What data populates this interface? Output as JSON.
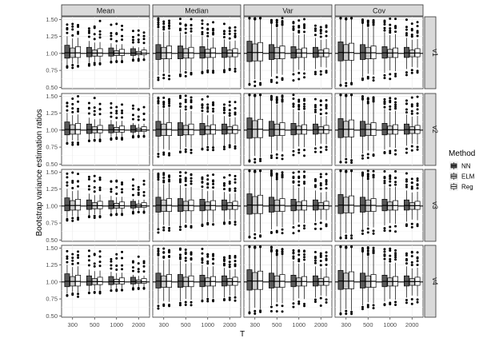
{
  "chart_data": {
    "type": "box",
    "panel_columns": [
      "Mean",
      "Median",
      "Var",
      "Cov"
    ],
    "panel_rows": [
      "v1",
      "v2",
      "v3",
      "v4"
    ],
    "categories": [
      "300",
      "500",
      "1000",
      "2000"
    ],
    "xlabel": "T",
    "ylabel": "Bootstrap variance estimation ratios",
    "ylim": [
      0.48,
      1.54
    ],
    "yticks": [
      0.5,
      0.75,
      1.0,
      1.25,
      1.5
    ],
    "ytick_labels": [
      "0.50",
      "0.75",
      "1.00",
      "1.25",
      "1.50"
    ],
    "reference_line": 1.0,
    "legend": {
      "title": "Method",
      "position": "right",
      "entries": [
        {
          "name": "NN",
          "color": "#595959"
        },
        {
          "name": "ELM",
          "color": "#c8c8c8"
        },
        {
          "name": "Reg",
          "color": "#ffffff"
        }
      ]
    },
    "grid": true,
    "series": [
      {
        "name": "NN",
        "color": "#595959"
      },
      {
        "name": "ELM",
        "color": "#c8c8c8"
      },
      {
        "name": "Reg",
        "color": "#ffffff"
      }
    ],
    "box_style": {
      "Mean": {
        "q1": [
          0.95,
          0.97,
          0.98,
          0.99
        ],
        "q3": [
          1.08,
          1.05,
          1.04,
          1.03
        ],
        "w_lo": [
          0.85,
          0.88,
          0.9,
          0.93
        ],
        "w_hi": [
          1.22,
          1.16,
          1.13,
          1.09
        ],
        "out_lo": [
          0.78,
          0.82,
          0.86,
          0.89
        ],
        "out_hi": [
          1.5,
          1.48,
          1.45,
          1.4
        ]
      },
      "Median": {
        "q1": [
          0.93,
          0.94,
          0.95,
          0.96
        ],
        "q3": [
          1.09,
          1.07,
          1.06,
          1.05
        ],
        "w_lo": [
          0.72,
          0.75,
          0.77,
          0.8
        ],
        "w_hi": [
          1.32,
          1.27,
          1.22,
          1.18
        ],
        "out_lo": [
          0.6,
          0.65,
          0.7,
          0.72
        ],
        "out_hi": [
          1.52,
          1.52,
          1.5,
          1.46
        ]
      },
      "Var": {
        "q1": [
          0.9,
          0.93,
          0.95,
          0.96
        ],
        "q3": [
          1.14,
          1.09,
          1.06,
          1.05
        ],
        "w_lo": [
          0.62,
          0.7,
          0.76,
          0.8
        ],
        "w_hi": [
          1.5,
          1.38,
          1.27,
          1.2
        ],
        "out_lo": [
          0.52,
          0.56,
          0.6,
          0.65
        ],
        "out_hi": [
          1.52,
          1.52,
          1.52,
          1.5
        ]
      },
      "Cov": {
        "q1": [
          0.91,
          0.93,
          0.95,
          0.96
        ],
        "q3": [
          1.13,
          1.09,
          1.06,
          1.05
        ],
        "w_lo": [
          0.6,
          0.7,
          0.75,
          0.8
        ],
        "w_hi": [
          1.5,
          1.38,
          1.27,
          1.2
        ],
        "out_lo": [
          0.52,
          0.58,
          0.62,
          0.66
        ],
        "out_hi": [
          1.52,
          1.52,
          1.52,
          1.5
        ]
      }
    },
    "method_offsets": {
      "NN": {
        "q1": -0.02,
        "q3": 0.04,
        "w": 1.15
      },
      "ELM": {
        "q1": -0.01,
        "q3": 0.0,
        "w": 1.0
      },
      "Reg": {
        "q1": -0.01,
        "q3": 0.02,
        "w": 1.05
      }
    }
  }
}
